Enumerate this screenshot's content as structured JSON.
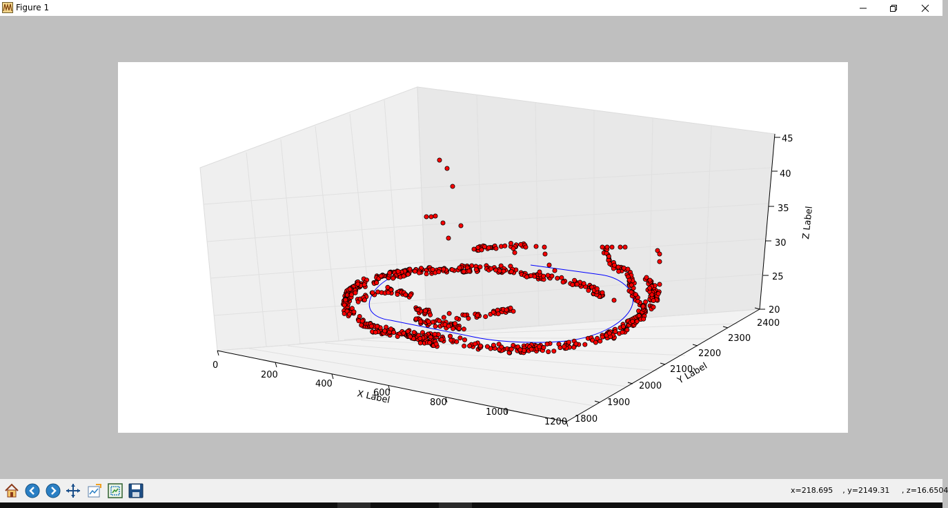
{
  "window": {
    "title": "Figure 1",
    "icon": "matplotlib-figure-icon"
  },
  "toolbar": {
    "buttons": [
      "home-icon",
      "back-arrow-icon",
      "forward-arrow-icon",
      "pan-move-icon",
      "configure-subplots-icon",
      "zoom-rectangle-icon",
      "save-floppy-icon"
    ],
    "coords": {
      "x": "x=218.695",
      "y": ", y=2149.31",
      "z": ", z=16.6504"
    }
  },
  "chart_data": {
    "type": "scatter",
    "projection": "3d",
    "xlabel": "X Label",
    "ylabel": "Y Label",
    "zlabel": "Z Label",
    "xlim": [
      0,
      1200
    ],
    "ylim": [
      1800,
      2400
    ],
    "zlim": [
      20,
      45
    ],
    "x_ticks": [
      "0",
      "200",
      "400",
      "600",
      "800",
      "1000",
      "1200"
    ],
    "y_ticks": [
      "1800",
      "1900",
      "2000",
      "2100",
      "2200",
      "2300",
      "2400"
    ],
    "z_ticks": [
      "20",
      "25",
      "30",
      "35",
      "40",
      "45"
    ],
    "grid": true,
    "marker_color": "#ff0000",
    "marker_edge_color": "#000000",
    "line_color": "#0000ff",
    "description": "Red scatter points arranged on an elliptical track near z=20-25, with a blue line tracing the loop and a few outlier points rising to about z=42."
  }
}
